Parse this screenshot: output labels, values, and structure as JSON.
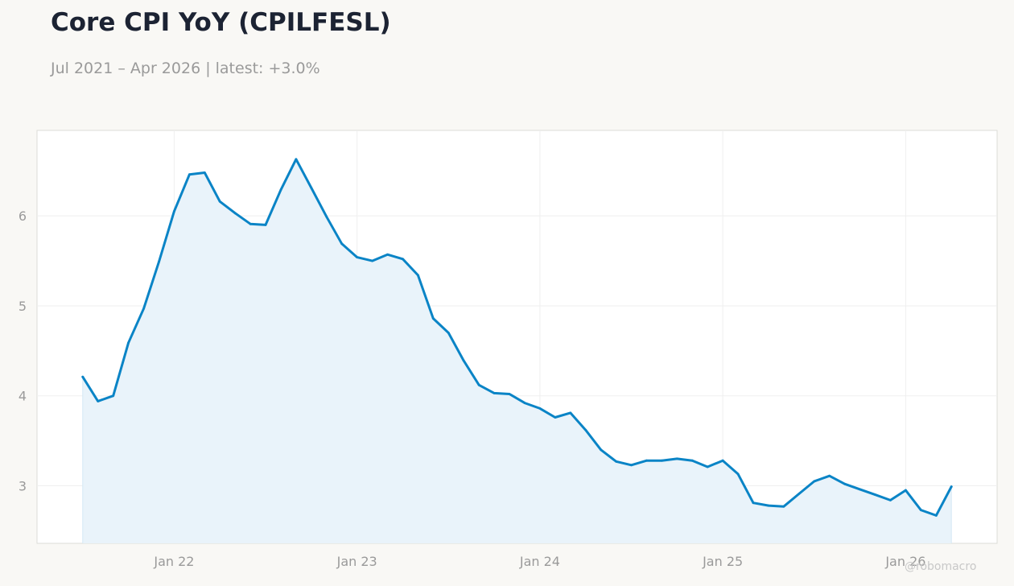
{
  "title": "Core CPI YoY (CPILFESL)",
  "subtitle": "Jul 2021 – Apr 2026 | latest: +3.0%",
  "watermark": "@robomacro",
  "colors": {
    "line": "#0a84c6",
    "fill": "#e9f3fa",
    "background": "#f9f8f5",
    "plot_background": "#ffffff"
  },
  "chart_data": {
    "type": "area",
    "title": "Core CPI YoY (CPILFESL)",
    "xlabel": "",
    "ylabel": "",
    "x_ticks": [
      {
        "date": "2022-01",
        "label": "Jan 22"
      },
      {
        "date": "2023-01",
        "label": "Jan 23"
      },
      {
        "date": "2024-01",
        "label": "Jan 24"
      },
      {
        "date": "2025-01",
        "label": "Jan 25"
      },
      {
        "date": "2026-01",
        "label": "Jan 26"
      }
    ],
    "y_ticks": [
      3,
      4,
      5,
      6
    ],
    "xlim": [
      "2021-04",
      "2026-07"
    ],
    "ylim": [
      2.36,
      6.95
    ],
    "grid": true,
    "legend": "none",
    "series": [
      {
        "x": [
          "2021-07",
          "2021-08",
          "2021-09",
          "2021-10",
          "2021-11",
          "2021-12",
          "2022-01",
          "2022-02",
          "2022-03",
          "2022-04",
          "2022-05",
          "2022-06",
          "2022-07",
          "2022-08",
          "2022-09",
          "2022-10",
          "2022-11",
          "2022-12",
          "2023-01",
          "2023-02",
          "2023-03",
          "2023-04",
          "2023-05",
          "2023-06",
          "2023-07",
          "2023-08",
          "2023-09",
          "2023-10",
          "2023-11",
          "2023-12",
          "2024-01",
          "2024-02",
          "2024-03",
          "2024-04",
          "2024-05",
          "2024-06",
          "2024-07",
          "2024-08",
          "2024-09",
          "2024-10",
          "2024-11",
          "2024-12",
          "2025-01",
          "2025-02",
          "2025-03",
          "2025-04",
          "2025-05",
          "2025-06",
          "2025-07",
          "2025-08",
          "2025-09",
          "2025-10",
          "2025-11",
          "2025-12",
          "2026-01",
          "2026-02",
          "2026-03",
          "2026-04"
        ],
        "values": [
          4.21,
          3.94,
          4.0,
          4.59,
          4.97,
          5.49,
          6.05,
          6.46,
          6.48,
          6.16,
          6.03,
          5.91,
          5.9,
          6.29,
          6.63,
          6.31,
          5.99,
          5.69,
          5.54,
          5.5,
          5.57,
          5.52,
          5.34,
          4.86,
          4.7,
          4.39,
          4.12,
          4.03,
          4.02,
          3.92,
          3.86,
          3.76,
          3.81,
          3.62,
          3.4,
          3.27,
          3.23,
          3.28,
          3.28,
          3.3,
          3.28,
          3.21,
          3.28,
          3.13,
          2.81,
          2.78,
          2.77,
          2.91,
          3.05,
          3.11,
          3.02,
          2.96,
          2.9,
          2.84,
          2.95,
          2.73,
          2.67,
          2.99
        ]
      }
    ]
  }
}
